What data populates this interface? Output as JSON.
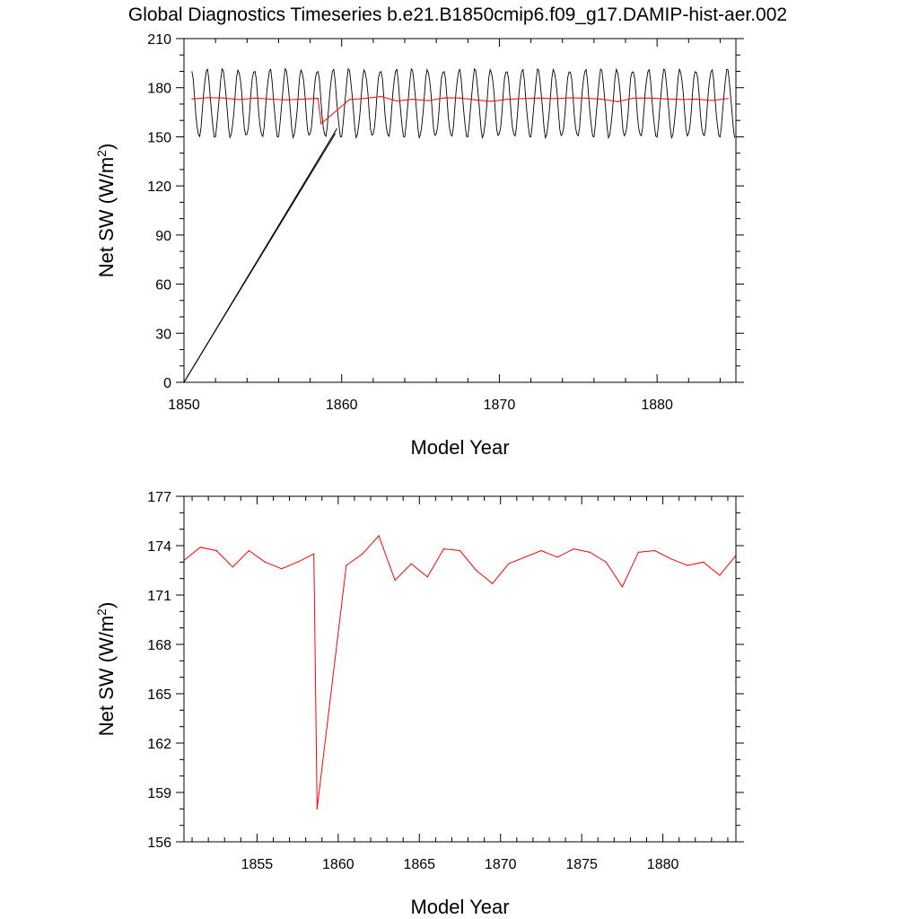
{
  "title": "Global Diagnostics Timeseries b.e21.B1850cmip6.f09_g17.DAMIP-hist-aer.002",
  "chart_data": [
    {
      "type": "line",
      "xlabel": "Model Year",
      "ylabel": "Net SW (W/m",
      "ylabel_sup": "2",
      "ylabel_close": ")",
      "xlim": [
        1850,
        1885
      ],
      "ylim": [
        0,
        210
      ],
      "x_ticks": [
        1850,
        1860,
        1870,
        1880
      ],
      "y_ticks": [
        0,
        30,
        60,
        90,
        120,
        150,
        180,
        210
      ],
      "grid": false,
      "series": [
        {
          "color": "#000000",
          "kind": "monthly",
          "start_year": 1850.5,
          "n_months": 414,
          "mean": 170.5,
          "amplitude": 20.5,
          "artifacts": [
            {
              "from": [
                1850.0,
                0
              ],
              "to": [
                1859.6,
                152
              ]
            },
            {
              "from": [
                1850.0,
                0
              ],
              "to": [
                1859.7,
                155
              ]
            }
          ]
        },
        {
          "color": "#ff0000",
          "kind": "annual",
          "ref": "annual_means"
        }
      ]
    },
    {
      "type": "line",
      "xlabel": "Model Year",
      "ylabel": "Net SW (W/m",
      "ylabel_sup": "2",
      "ylabel_close": ")",
      "xlim": [
        1850.5,
        1884.5
      ],
      "ylim": [
        156,
        177
      ],
      "x_ticks": [
        1855,
        1860,
        1865,
        1870,
        1875,
        1880
      ],
      "y_ticks": [
        156,
        159,
        162,
        165,
        168,
        171,
        174,
        177
      ],
      "grid": false,
      "series": [
        {
          "color": "#ff0000",
          "kind": "annual",
          "ref": "annual_means"
        }
      ]
    }
  ],
  "annual_means": {
    "x": [
      1850.5,
      1851.5,
      1852.5,
      1853.5,
      1854.5,
      1855.5,
      1856.5,
      1857.5,
      1858.5,
      1858.7,
      1860.5,
      1861.5,
      1862.5,
      1863.5,
      1864.5,
      1865.5,
      1866.5,
      1867.5,
      1868.5,
      1869.5,
      1870.5,
      1871.5,
      1872.5,
      1873.5,
      1874.5,
      1875.5,
      1876.5,
      1877.5,
      1878.5,
      1879.5,
      1880.5,
      1881.5,
      1882.5,
      1883.5,
      1884.5
    ],
    "y": [
      173.1,
      173.9,
      173.7,
      172.7,
      173.7,
      173.0,
      172.6,
      173.0,
      173.5,
      158.0,
      172.8,
      173.5,
      174.6,
      171.9,
      172.9,
      172.1,
      173.8,
      173.7,
      172.5,
      171.7,
      172.9,
      173.3,
      173.7,
      173.3,
      173.8,
      173.6,
      173.0,
      171.5,
      173.6,
      173.7,
      173.2,
      172.8,
      173.0,
      172.2,
      173.4
    ]
  }
}
